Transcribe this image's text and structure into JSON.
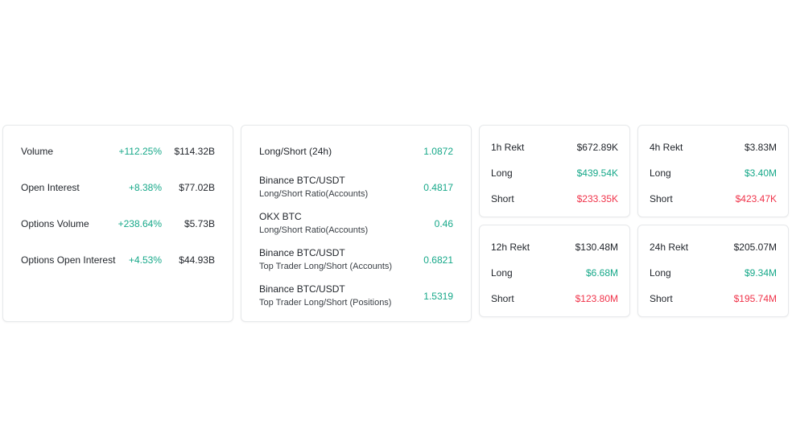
{
  "market": {
    "rows": [
      {
        "label": "Volume",
        "change": "+112.25%",
        "value": "$114.32B"
      },
      {
        "label": "Open Interest",
        "change": "+8.38%",
        "value": "$77.02B"
      },
      {
        "label": "Options Volume",
        "change": "+238.64%",
        "value": "$5.73B"
      },
      {
        "label": "Options Open Interest",
        "change": "+4.53%",
        "value": "$44.93B"
      }
    ]
  },
  "ratios": {
    "rows": [
      {
        "title": "Long/Short (24h)",
        "subtitle": "",
        "value": "1.0872"
      },
      {
        "title": "Binance BTC/USDT",
        "subtitle": "Long/Short Ratio(Accounts)",
        "value": "0.4817"
      },
      {
        "title": "OKX BTC",
        "subtitle": "Long/Short Ratio(Accounts)",
        "value": "0.46"
      },
      {
        "title": "Binance BTC/USDT",
        "subtitle": "Top Trader Long/Short (Accounts)",
        "value": "0.6821"
      },
      {
        "title": "Binance BTC/USDT",
        "subtitle": "Top Trader Long/Short (Positions)",
        "value": "1.5319"
      }
    ]
  },
  "rekt": [
    {
      "title": "1h Rekt",
      "total": "$672.89K",
      "long_label": "Long",
      "long": "$439.54K",
      "short_label": "Short",
      "short": "$233.35K"
    },
    {
      "title": "4h Rekt",
      "total": "$3.83M",
      "long_label": "Long",
      "long": "$3.40M",
      "short_label": "Short",
      "short": "$423.47K"
    },
    {
      "title": "12h Rekt",
      "total": "$130.48M",
      "long_label": "Long",
      "long": "$6.68M",
      "short_label": "Short",
      "short": "$123.80M"
    },
    {
      "title": "24h Rekt",
      "total": "$205.07M",
      "long_label": "Long",
      "long": "$9.34M",
      "short_label": "Short",
      "short": "$195.74M"
    }
  ],
  "colors": {
    "positive": "#16a889",
    "negative": "#f0334a",
    "text": "#1f2329",
    "border": "#e6e8ea"
  }
}
